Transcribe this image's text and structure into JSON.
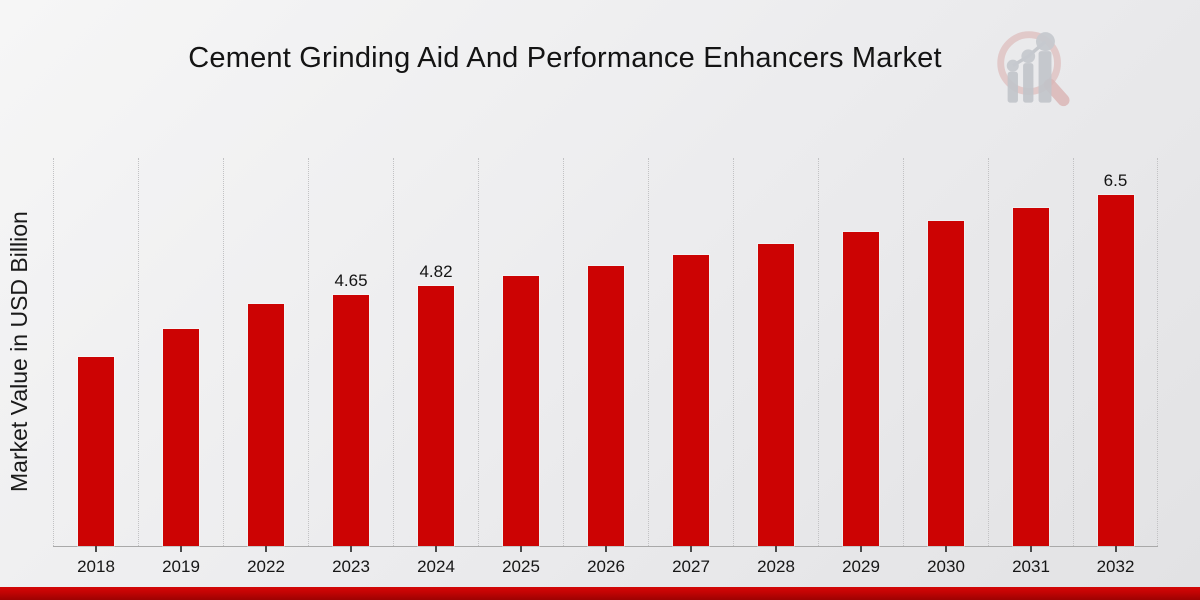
{
  "page": {
    "title": "Cement Grinding Aid And Performance Enhancers Market"
  },
  "y_axis": {
    "label": "Market Value in USD Billion"
  },
  "logo": {
    "name": "magnifier-bar-chart-watermark",
    "ring_color": "#dfc3c3",
    "handle_color": "#dbb7b7",
    "bars_color": "#c1c4ca"
  },
  "footer": {
    "band_color": "#c40404"
  },
  "chart_data": {
    "type": "bar",
    "title": "Cement Grinding Aid And Performance Enhancers Market",
    "xlabel": "",
    "ylabel": "Market Value in USD Billion",
    "categories": [
      "2018",
      "2019",
      "2022",
      "2023",
      "2024",
      "2025",
      "2026",
      "2027",
      "2028",
      "2029",
      "2030",
      "2031",
      "2032"
    ],
    "values": [
      3.5,
      4.02,
      4.48,
      4.65,
      4.82,
      5.0,
      5.19,
      5.39,
      5.6,
      5.81,
      6.03,
      6.26,
      6.5
    ],
    "data_labels": [
      "",
      "",
      "",
      "4.65",
      "4.82",
      "",
      "",
      "",
      "",
      "",
      "",
      "",
      "6.5"
    ],
    "bar_color": "#cc0303",
    "ylim": [
      0,
      7.19
    ],
    "grid": "vertical-dotted",
    "legend": "none"
  }
}
